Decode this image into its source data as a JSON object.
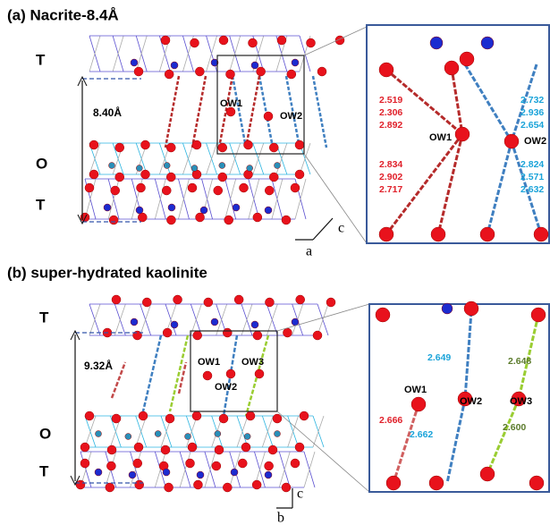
{
  "panels": [
    {
      "title": "(a) Nacrite-8.4Å",
      "layers": [
        "T",
        "O",
        "T"
      ],
      "spacing": "8.40Å",
      "water_labels": [
        "OW1",
        "OW2"
      ],
      "axes": [
        "a",
        "c"
      ],
      "inset": {
        "labels": [
          "OW1",
          "OW2"
        ],
        "ow1_distances": [
          "2.519",
          "2.306",
          "2.892",
          "2.834",
          "2.902",
          "2.717"
        ],
        "ow2_distances": [
          "2.732",
          "2.936",
          "2.654",
          "2.824",
          "2.571",
          "2.632"
        ]
      }
    },
    {
      "title": "(b) super-hydrated kaolinite",
      "layers": [
        "T",
        "O",
        "T"
      ],
      "spacing": "9.32Å",
      "water_labels": [
        "OW1",
        "OW2",
        "OW3"
      ],
      "axes": [
        "c",
        "b"
      ],
      "inset": {
        "labels": [
          "OW1",
          "OW2",
          "OW3"
        ],
        "distances": [
          "2.649",
          "2.648",
          "2.666",
          "2.662",
          "2.600"
        ]
      }
    }
  ]
}
